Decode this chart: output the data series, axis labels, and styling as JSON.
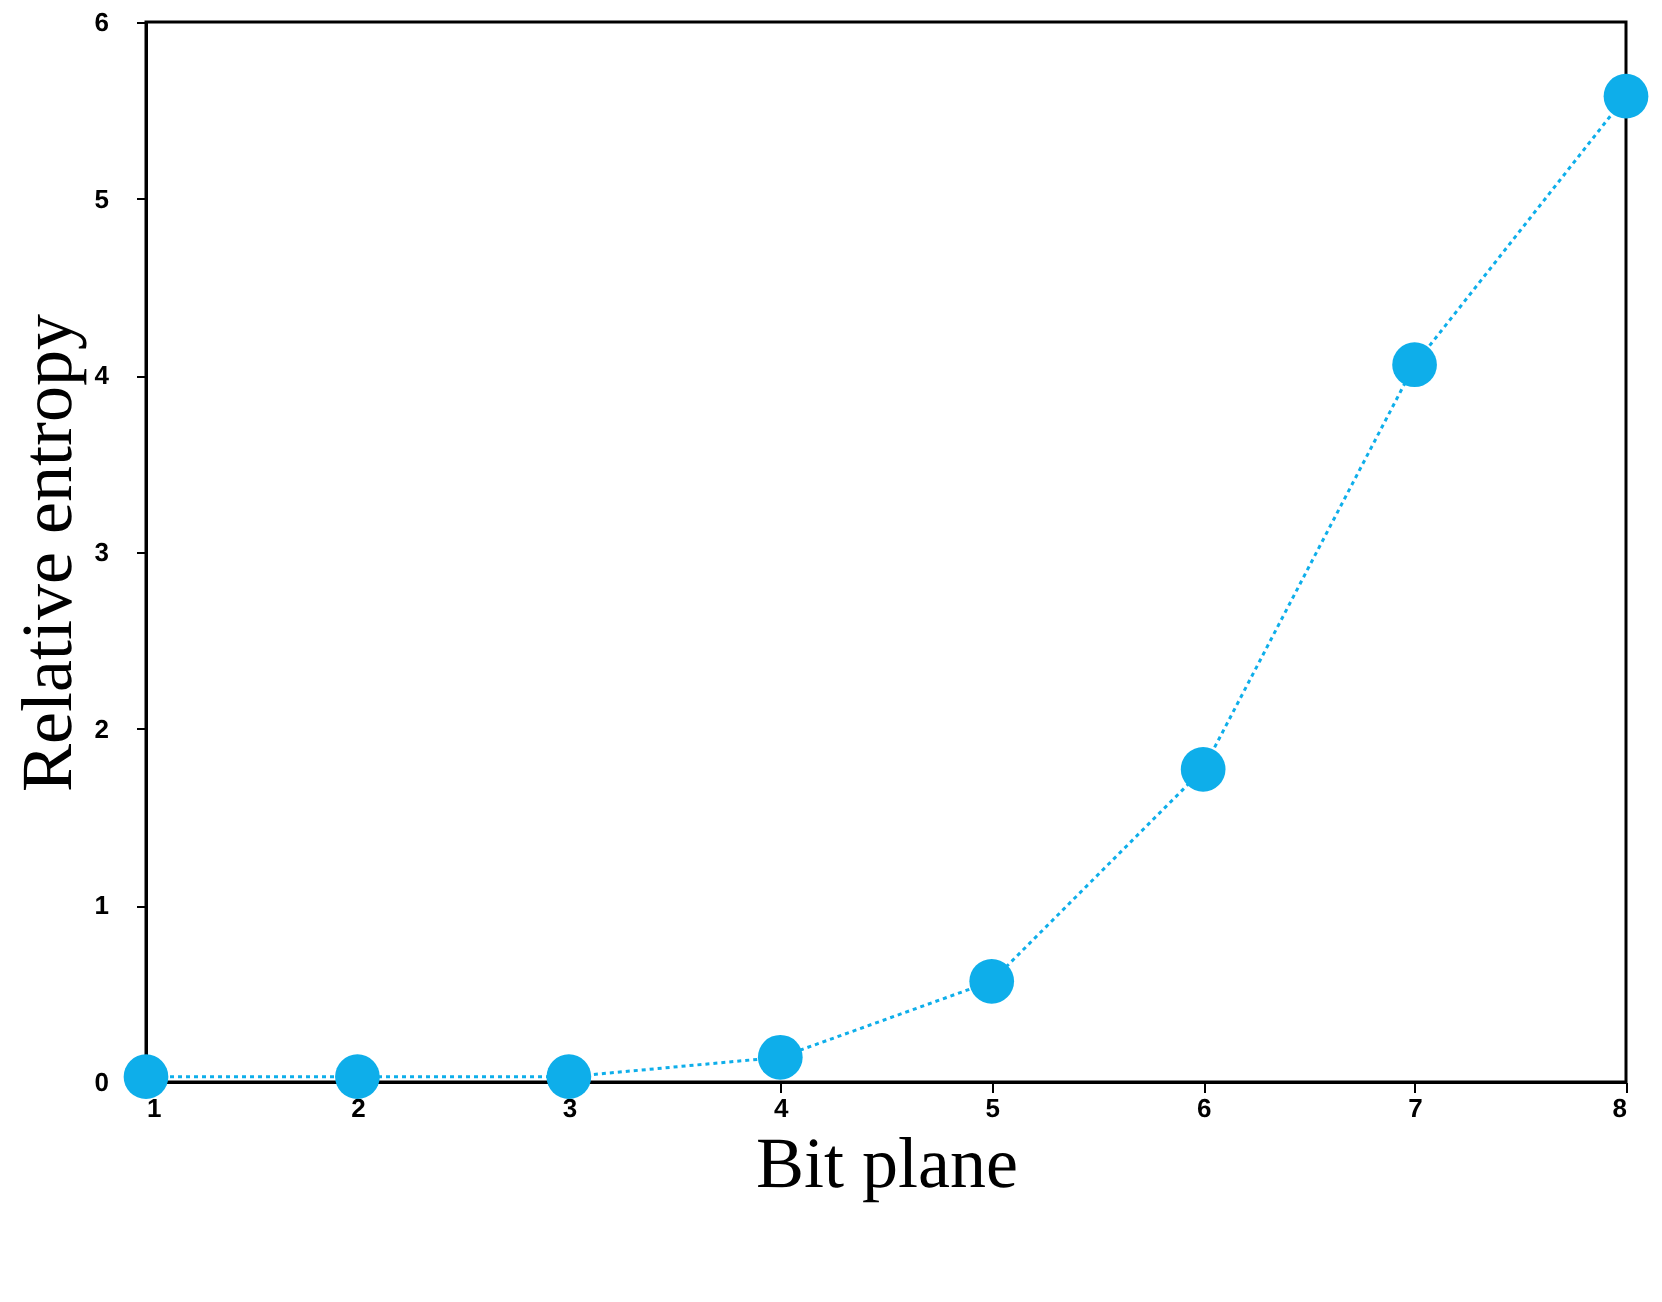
{
  "chart_data": {
    "type": "line",
    "xlabel": "Bit plane",
    "ylabel": "Relative entropy",
    "x": [
      1,
      2,
      3,
      4,
      5,
      6,
      7,
      8
    ],
    "series": [
      {
        "color": "#0eaeea",
        "values": [
          0.03,
          0.03,
          0.03,
          0.14,
          0.57,
          1.77,
          4.06,
          5.58
        ]
      }
    ],
    "xlim": [
      1,
      8
    ],
    "xticks": [
      1,
      2,
      3,
      4,
      5,
      6,
      7,
      8
    ],
    "ylim": [
      0,
      6
    ],
    "yticks": [
      0,
      1,
      2,
      3,
      4,
      5,
      6
    ],
    "marker": "circle",
    "line_style": "dotted",
    "grid": false
  }
}
